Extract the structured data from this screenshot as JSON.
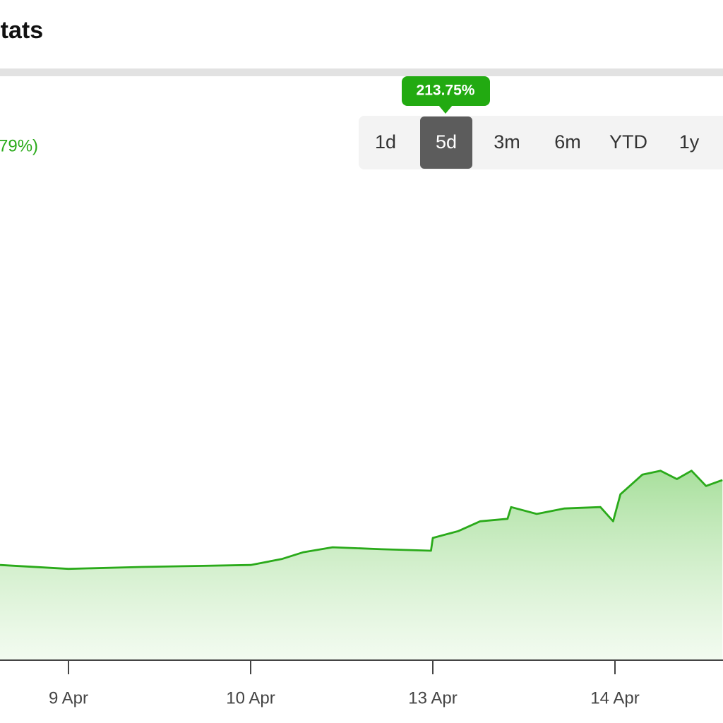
{
  "header": {
    "title": "Stats"
  },
  "change_label": "79%)",
  "tooltip": "213.75%",
  "ranges": [
    "1d",
    "5d",
    "3m",
    "6m",
    "YTD",
    "1y"
  ],
  "selected_range": 1,
  "chart_data": {
    "type": "area",
    "color": "#2aaa1a",
    "x": [
      0.624,
      1,
      1.4,
      2,
      2.17,
      2.29,
      2.45,
      2.72,
      2.99,
      3.0,
      3.14,
      3.26,
      3.41,
      3.43,
      3.57,
      3.72,
      3.92,
      3.99,
      4.03,
      4.15,
      4.25,
      4.34,
      4.42,
      4.5,
      4.59
    ],
    "values": [
      19.4,
      18.6,
      19.0,
      19.4,
      20.6,
      22.0,
      23.0,
      22.6,
      22.3,
      24.9,
      26.3,
      28.3,
      28.8,
      31.2,
      29.8,
      30.9,
      31.2,
      28.3,
      33.8,
      37.8,
      38.6,
      36.9,
      38.6,
      35.5,
      36.7
    ],
    "xlim": [
      0.624,
      4.593
    ],
    "ylim": [
      0,
      100
    ],
    "xticks": [
      {
        "value": 1,
        "label": "9 Apr"
      },
      {
        "value": 2,
        "label": "10 Apr"
      },
      {
        "value": 3,
        "label": "13 Apr"
      },
      {
        "value": 4,
        "label": "14 Apr"
      }
    ]
  }
}
